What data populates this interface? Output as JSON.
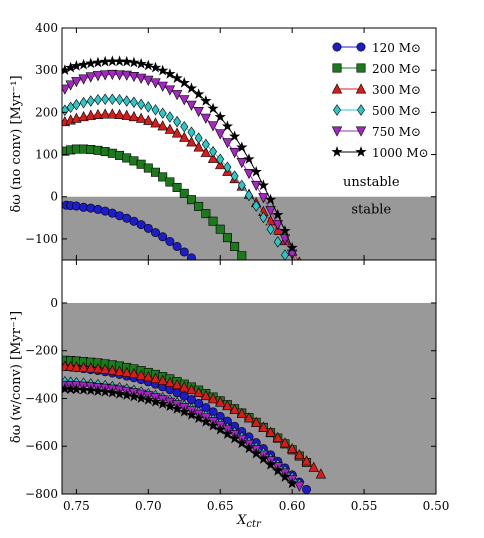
{
  "chart_data": [
    {
      "type": "line",
      "panel": "top",
      "ylabel": "δω (no conv) [Myr⁻¹]",
      "xlim": [
        0.76,
        0.5
      ],
      "ylim": [
        -150,
        400
      ],
      "xticks": [],
      "yticks": [
        -100,
        0,
        100,
        200,
        300,
        400
      ],
      "shaded_region": [
        -150,
        0
      ],
      "annotations": [
        {
          "text": "unstable",
          "x": 0.545,
          "y": 25
        },
        {
          "text": "stable",
          "x": 0.545,
          "y": -40
        }
      ],
      "legend_position": "top-right",
      "legend": [
        {
          "label": "120 M⊙",
          "marker": "circle",
          "color": "#1d1dc8"
        },
        {
          "label": "200 M⊙",
          "marker": "square",
          "color": "#1b7a1b"
        },
        {
          "label": "300 M⊙",
          "marker": "triangle-up",
          "color": "#d81c1c"
        },
        {
          "label": "500 M⊙",
          "marker": "diamond",
          "color": "#2fc5c5"
        },
        {
          "label": "750 M⊙",
          "marker": "triangle-down",
          "color": "#a327c0"
        },
        {
          "label": "1000 M⊙",
          "marker": "star",
          "color": "#000000"
        }
      ],
      "series": [
        {
          "marker": "circle",
          "color": "#1d1dc8",
          "x": [
            0.757,
            0.754,
            0.75,
            0.745,
            0.74,
            0.735,
            0.73,
            0.725,
            0.72,
            0.715,
            0.71,
            0.705,
            0.7,
            0.695,
            0.69,
            0.685,
            0.68,
            0.675,
            0.67,
            0.665,
            0.66
          ],
          "y": [
            -20,
            -21,
            -22,
            -25,
            -27,
            -30,
            -34,
            -39,
            -45,
            -51,
            -58,
            -66,
            -75,
            -85,
            -95,
            -106,
            -118,
            -131,
            -145,
            -160,
            -176
          ]
        },
        {
          "marker": "square",
          "color": "#1b7a1b",
          "x": [
            0.758,
            0.754,
            0.75,
            0.745,
            0.74,
            0.735,
            0.73,
            0.725,
            0.72,
            0.715,
            0.71,
            0.705,
            0.7,
            0.695,
            0.69,
            0.685,
            0.68,
            0.675,
            0.67,
            0.665,
            0.66,
            0.655,
            0.65,
            0.645,
            0.64,
            0.635,
            0.63,
            0.625,
            0.62
          ],
          "y": [
            108,
            111,
            113,
            113,
            112,
            110,
            107,
            103,
            98,
            92,
            85,
            77,
            68,
            58,
            47,
            35,
            22,
            8,
            -7,
            -23,
            -40,
            -58,
            -77,
            -97,
            -118,
            -140,
            -163,
            -187,
            -212
          ]
        },
        {
          "marker": "triangle-up",
          "color": "#d81c1c",
          "x": [
            0.758,
            0.754,
            0.75,
            0.745,
            0.74,
            0.735,
            0.73,
            0.725,
            0.72,
            0.715,
            0.71,
            0.705,
            0.7,
            0.695,
            0.69,
            0.685,
            0.68,
            0.675,
            0.67,
            0.665,
            0.66,
            0.655,
            0.65,
            0.645,
            0.64,
            0.635,
            0.63,
            0.625,
            0.62,
            0.615,
            0.61,
            0.605,
            0.6,
            0.595
          ],
          "y": [
            178,
            182,
            186,
            190,
            193,
            195,
            196,
            196,
            195,
            193,
            190,
            186,
            181,
            175,
            168,
            160,
            151,
            141,
            130,
            118,
            105,
            91,
            76,
            60,
            43,
            25,
            6,
            -14,
            -35,
            -57,
            -80,
            -104,
            -129,
            -155
          ]
        },
        {
          "marker": "diamond",
          "color": "#2fc5c5",
          "x": [
            0.758,
            0.754,
            0.75,
            0.745,
            0.74,
            0.735,
            0.73,
            0.725,
            0.72,
            0.715,
            0.71,
            0.705,
            0.7,
            0.695,
            0.69,
            0.685,
            0.68,
            0.675,
            0.67,
            0.665,
            0.66,
            0.655,
            0.65,
            0.645,
            0.64,
            0.635,
            0.63,
            0.625,
            0.62,
            0.615,
            0.61,
            0.605,
            0.6,
            0.595
          ],
          "y": [
            205,
            212,
            218,
            223,
            227,
            230,
            231,
            231,
            230,
            227,
            224,
            219,
            213,
            206,
            198,
            189,
            178,
            166,
            153,
            139,
            124,
            107,
            89,
            70,
            49,
            27,
            3,
            -22,
            -49,
            -77,
            -107,
            -138,
            -170,
            -203
          ]
        },
        {
          "marker": "triangle-down",
          "color": "#a327c0",
          "x": [
            0.758,
            0.754,
            0.75,
            0.745,
            0.74,
            0.735,
            0.73,
            0.725,
            0.72,
            0.715,
            0.71,
            0.705,
            0.7,
            0.695,
            0.69,
            0.685,
            0.68,
            0.675,
            0.67,
            0.665,
            0.66,
            0.655,
            0.65,
            0.645,
            0.64,
            0.635,
            0.63,
            0.625,
            0.62,
            0.615,
            0.61,
            0.605,
            0.6,
            0.595
          ],
          "y": [
            255,
            265,
            273,
            279,
            284,
            287,
            289,
            290,
            289,
            288,
            285,
            281,
            276,
            270,
            262,
            253,
            242,
            230,
            217,
            202,
            186,
            168,
            149,
            128,
            105,
            81,
            55,
            27,
            -2,
            -33,
            -66,
            -100,
            -136,
            -174
          ]
        },
        {
          "marker": "star",
          "color": "#000000",
          "x": [
            0.758,
            0.754,
            0.75,
            0.745,
            0.74,
            0.735,
            0.73,
            0.725,
            0.72,
            0.715,
            0.71,
            0.705,
            0.7,
            0.695,
            0.69,
            0.685,
            0.68,
            0.675,
            0.67,
            0.665,
            0.66,
            0.655,
            0.65,
            0.645,
            0.64,
            0.635,
            0.63,
            0.625,
            0.62,
            0.615,
            0.61,
            0.605,
            0.6
          ],
          "y": [
            300,
            306,
            310,
            313,
            316,
            318,
            320,
            321,
            321,
            320,
            318,
            315,
            311,
            306,
            299,
            291,
            281,
            270,
            257,
            243,
            227,
            209,
            189,
            167,
            143,
            117,
            89,
            59,
            27,
            -7,
            -43,
            -81,
            -121
          ]
        }
      ]
    },
    {
      "type": "line",
      "panel": "bottom",
      "xlabel": "X_ctr",
      "ylabel": "δω (w/conv) [Myr⁻¹]",
      "xlim": [
        0.76,
        0.5
      ],
      "ylim": [
        -800,
        180
      ],
      "xticks": [
        0.75,
        0.7,
        0.65,
        0.6,
        0.55,
        0.5
      ],
      "yticks": [
        -800,
        -600,
        -400,
        -200,
        0
      ],
      "shaded_region": [
        -800,
        0
      ],
      "series": [
        {
          "marker": "circle",
          "color": "#1d1dc8",
          "x": [
            0.758,
            0.754,
            0.75,
            0.745,
            0.74,
            0.735,
            0.73,
            0.725,
            0.72,
            0.715,
            0.71,
            0.705,
            0.7,
            0.695,
            0.69,
            0.685,
            0.68,
            0.675,
            0.67,
            0.665,
            0.66,
            0.655,
            0.65,
            0.645,
            0.64,
            0.635,
            0.63,
            0.625,
            0.62,
            0.615,
            0.61,
            0.605,
            0.6,
            0.595,
            0.59
          ],
          "y": [
            -265,
            -268,
            -271,
            -275,
            -279,
            -283,
            -288,
            -293,
            -299,
            -306,
            -313,
            -321,
            -330,
            -340,
            -351,
            -363,
            -376,
            -390,
            -405,
            -421,
            -438,
            -456,
            -475,
            -495,
            -516,
            -538,
            -561,
            -585,
            -610,
            -636,
            -663,
            -691,
            -720,
            -750,
            -781
          ]
        },
        {
          "marker": "square",
          "color": "#1b7a1b",
          "x": [
            0.758,
            0.754,
            0.75,
            0.745,
            0.74,
            0.735,
            0.73,
            0.725,
            0.72,
            0.715,
            0.71,
            0.705,
            0.7,
            0.695,
            0.69,
            0.685,
            0.68,
            0.675,
            0.67,
            0.665,
            0.66,
            0.655,
            0.65,
            0.645,
            0.64,
            0.635,
            0.63,
            0.625,
            0.62,
            0.615,
            0.61,
            0.605,
            0.6,
            0.595,
            0.59
          ],
          "y": [
            -240,
            -241,
            -243,
            -245,
            -248,
            -251,
            -255,
            -259,
            -264,
            -270,
            -276,
            -283,
            -291,
            -299,
            -308,
            -318,
            -329,
            -340,
            -352,
            -365,
            -379,
            -394,
            -410,
            -426,
            -443,
            -461,
            -480,
            -500,
            -521,
            -543,
            -566,
            -590,
            -615,
            -641,
            -668
          ]
        },
        {
          "marker": "triangle-up",
          "color": "#d81c1c",
          "x": [
            0.758,
            0.754,
            0.75,
            0.745,
            0.74,
            0.735,
            0.73,
            0.725,
            0.72,
            0.715,
            0.71,
            0.705,
            0.7,
            0.695,
            0.69,
            0.685,
            0.68,
            0.675,
            0.67,
            0.665,
            0.66,
            0.655,
            0.65,
            0.645,
            0.64,
            0.635,
            0.63,
            0.625,
            0.62,
            0.615,
            0.61,
            0.605,
            0.6,
            0.595,
            0.59,
            0.585,
            0.58
          ],
          "y": [
            -265,
            -266,
            -268,
            -270,
            -272,
            -275,
            -278,
            -282,
            -286,
            -291,
            -296,
            -302,
            -309,
            -316,
            -324,
            -333,
            -342,
            -352,
            -363,
            -375,
            -388,
            -401,
            -415,
            -430,
            -446,
            -463,
            -481,
            -500,
            -520,
            -541,
            -563,
            -586,
            -610,
            -635,
            -661,
            -688,
            -716
          ]
        },
        {
          "marker": "diamond",
          "color": "#2fc5c5",
          "x": [
            0.758,
            0.754,
            0.75,
            0.745,
            0.74,
            0.735,
            0.73,
            0.725,
            0.72,
            0.715,
            0.71,
            0.705,
            0.7,
            0.695,
            0.69,
            0.685,
            0.68,
            0.675,
            0.67,
            0.665,
            0.66,
            0.655,
            0.65,
            0.645,
            0.64,
            0.635,
            0.63,
            0.625,
            0.62,
            0.615,
            0.61,
            0.605,
            0.6,
            0.595
          ],
          "y": [
            -330,
            -332,
            -334,
            -336,
            -339,
            -342,
            -346,
            -350,
            -355,
            -360,
            -366,
            -373,
            -380,
            -388,
            -397,
            -407,
            -418,
            -430,
            -443,
            -457,
            -472,
            -488,
            -505,
            -523,
            -542,
            -562,
            -583,
            -605,
            -628,
            -652,
            -677,
            -703,
            -730,
            -758
          ]
        },
        {
          "marker": "triangle-down",
          "color": "#a327c0",
          "x": [
            0.758,
            0.754,
            0.75,
            0.745,
            0.74,
            0.735,
            0.73,
            0.725,
            0.72,
            0.715,
            0.71,
            0.705,
            0.7,
            0.695,
            0.69,
            0.685,
            0.68,
            0.675,
            0.67,
            0.665,
            0.66,
            0.655,
            0.65,
            0.645,
            0.64,
            0.635,
            0.63,
            0.625,
            0.62,
            0.615,
            0.61,
            0.605,
            0.6,
            0.595
          ],
          "y": [
            -345,
            -346,
            -347,
            -349,
            -351,
            -354,
            -357,
            -361,
            -365,
            -370,
            -376,
            -382,
            -389,
            -397,
            -406,
            -416,
            -427,
            -439,
            -452,
            -466,
            -481,
            -497,
            -514,
            -532,
            -551,
            -571,
            -592,
            -614,
            -637,
            -661,
            -686,
            -712,
            -739,
            -767
          ]
        },
        {
          "marker": "star",
          "color": "#000000",
          "x": [
            0.758,
            0.754,
            0.75,
            0.745,
            0.74,
            0.735,
            0.73,
            0.725,
            0.72,
            0.715,
            0.71,
            0.705,
            0.7,
            0.695,
            0.69,
            0.685,
            0.68,
            0.675,
            0.67,
            0.665,
            0.66,
            0.655,
            0.65,
            0.645,
            0.64,
            0.635,
            0.63,
            0.625,
            0.62,
            0.615,
            0.61,
            0.605,
            0.6
          ],
          "y": [
            -360,
            -361,
            -362,
            -364,
            -366,
            -369,
            -372,
            -376,
            -381,
            -386,
            -392,
            -399,
            -406,
            -414,
            -423,
            -433,
            -444,
            -456,
            -469,
            -483,
            -498,
            -514,
            -531,
            -549,
            -568,
            -588,
            -609,
            -631,
            -654,
            -678,
            -703,
            -729,
            -756
          ]
        }
      ]
    }
  ]
}
